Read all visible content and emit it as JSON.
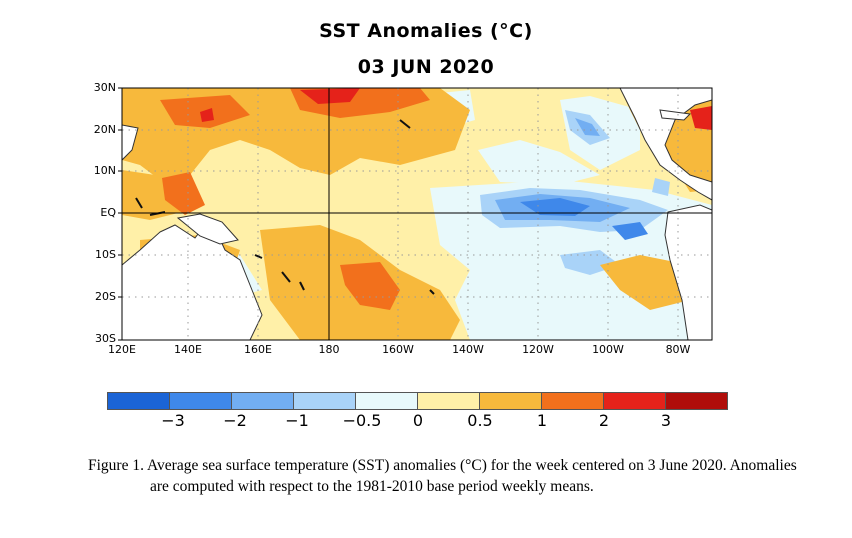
{
  "title": "SST Anomalies (°C)",
  "subtitle": "03 JUN 2020",
  "map": {
    "latitude_labels": [
      "30N",
      "20N",
      "10N",
      "EQ",
      "10S",
      "20S",
      "30S"
    ],
    "longitude_labels": [
      "120E",
      "140E",
      "160E",
      "180",
      "160W",
      "140W",
      "120W",
      "100W",
      "80W"
    ],
    "colors": {
      "land": "#ffffff",
      "grid_dots": "#9a9a9a",
      "reference_lines": "#000000"
    }
  },
  "colorbar": {
    "colors": [
      "#1b64d6",
      "#3f88ea",
      "#72aef2",
      "#a9d3f8",
      "#e8f9fb",
      "#fff0a8",
      "#f7b93c",
      "#f2701c",
      "#e5221a",
      "#b00d0a"
    ],
    "tick_labels": [
      "−3",
      "−2",
      "−1",
      "−0.5",
      "0",
      "0.5",
      "1",
      "2",
      "3"
    ]
  },
  "caption": "Figure 1. Average sea surface temperature (SST) anomalies (°C) for the week centered on 3 June 2020.  Anomalies are computed with respect to the 1981-2010 base period weekly means."
}
